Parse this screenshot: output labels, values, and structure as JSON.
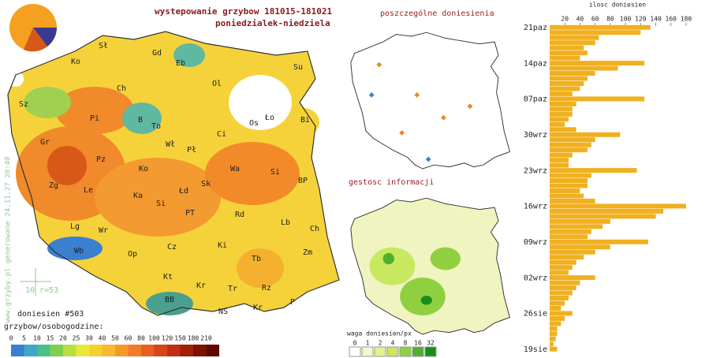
{
  "title": "wystepowanie grzybow 181015-181021",
  "subtitle": "poniedzialek-niedziela",
  "main_map": {
    "regions": [
      "Sł",
      "Gd",
      "Eb",
      "Ko",
      "Su",
      "Ol",
      "Ch",
      "Sz",
      "Pi",
      "B",
      "To",
      "Ci",
      "Os",
      "Ło",
      "Bi",
      "Gr",
      "Wł",
      "Pł",
      "Pz",
      "Ko",
      "Wa",
      "Si",
      "Zg",
      "Le",
      "Ka",
      "Łd",
      "Sk",
      "BP",
      "Si",
      "PT",
      "Rd",
      "Lb",
      "Lg",
      "Wr",
      "Ch",
      "Op",
      "Cz",
      "Ki",
      "Zm",
      "Wb",
      "Tb",
      "Kt",
      "Kr",
      "Rz",
      "Tr",
      "BB",
      "NS",
      "Kr",
      "P"
    ],
    "credit": "www.grzyby.pl generowane 24.11.27 20:40",
    "scale_note": "10 r=53",
    "count": "doniesien #503",
    "legend_title": "grzybow/osobogodzine:",
    "legend_ticks": [
      0,
      5,
      10,
      15,
      20,
      25,
      30,
      40,
      50,
      60,
      80,
      100,
      120,
      150,
      180,
      210
    ],
    "legend_colors": [
      "#3a7fd0",
      "#3fa8c8",
      "#4cbf8a",
      "#7fd04a",
      "#b8e040",
      "#e8e83a",
      "#f5d030",
      "#f8b830",
      "#f59a2a",
      "#f07d25",
      "#e86020",
      "#d84518",
      "#c03010",
      "#a02008",
      "#801000",
      "#600800"
    ]
  },
  "points_map": {
    "title": "poszczególne doniesienia"
  },
  "density_map": {
    "title": "gestosc informacji",
    "legend_title": "waga doniesien/px",
    "legend_ticks": [
      0,
      1,
      2,
      4,
      8,
      16,
      32
    ],
    "legend_colors": [
      "#ffffff",
      "#f4f8c8",
      "#e8f090",
      "#c8e860",
      "#90d040",
      "#50b030",
      "#189018"
    ]
  },
  "chart_data": {
    "type": "bar",
    "title": "ilosc doniesien",
    "xlim": [
      0,
      180
    ],
    "xticks": [
      20,
      40,
      60,
      80,
      100,
      120,
      140,
      160,
      180
    ],
    "color": "#f0b020",
    "date_labels": [
      {
        "row": 0,
        "label": "21paz"
      },
      {
        "row": 7,
        "label": "14paz"
      },
      {
        "row": 14,
        "label": "07paz"
      },
      {
        "row": 21,
        "label": "30wrz"
      },
      {
        "row": 28,
        "label": "23wrz"
      },
      {
        "row": 35,
        "label": "16wrz"
      },
      {
        "row": 42,
        "label": "09wrz"
      },
      {
        "row": 49,
        "label": "02wrz"
      },
      {
        "row": 56,
        "label": "26sie"
      },
      {
        "row": 63,
        "label": "19sie"
      }
    ],
    "values": [
      133,
      120,
      65,
      60,
      45,
      50,
      40,
      125,
      90,
      60,
      50,
      45,
      40,
      30,
      125,
      35,
      30,
      30,
      25,
      20,
      35,
      93,
      60,
      55,
      50,
      30,
      25,
      25,
      115,
      55,
      50,
      50,
      40,
      45,
      60,
      180,
      150,
      140,
      80,
      70,
      55,
      50,
      130,
      80,
      60,
      45,
      35,
      30,
      25,
      60,
      40,
      35,
      30,
      25,
      20,
      15,
      30,
      20,
      15,
      10,
      10,
      8,
      5,
      10
    ]
  }
}
